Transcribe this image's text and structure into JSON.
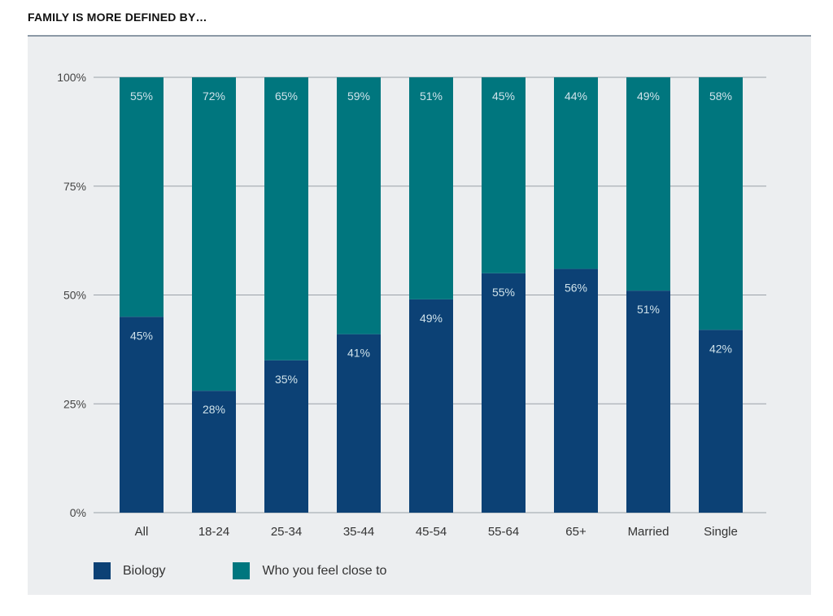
{
  "header": {
    "title": "FAMILY IS MORE DEFINED BY…"
  },
  "colors": {
    "biology": "#0c4175",
    "close": "#00767e",
    "grid": "#9aa1a8",
    "panel_bg": "#eceef0",
    "label_text": "#cfe2ea"
  },
  "legend": {
    "items": [
      {
        "label": "Biology",
        "color": "#0c4175"
      },
      {
        "label": "Who you feel close to",
        "color": "#00767e"
      }
    ]
  },
  "chart_data": {
    "type": "bar",
    "stacked": true,
    "title": "FAMILY IS MORE DEFINED BY…",
    "categories": [
      "All",
      "18-24",
      "25-34",
      "35-44",
      "45-54",
      "55-64",
      "65+",
      "Married",
      "Single"
    ],
    "series": [
      {
        "name": "Biology",
        "values": [
          45,
          28,
          35,
          41,
          49,
          55,
          56,
          51,
          42
        ],
        "labels": [
          "45%",
          "28%",
          "35%",
          "41%",
          "49%",
          "55%",
          "56%",
          "51%",
          "42%"
        ]
      },
      {
        "name": "Who you feel close to",
        "values": [
          55,
          72,
          65,
          59,
          51,
          45,
          44,
          49,
          58
        ],
        "labels": [
          "55%",
          "72%",
          "65%",
          "59%",
          "51%",
          "45%",
          "44%",
          "49%",
          "58%"
        ]
      }
    ],
    "yticks": [
      0,
      25,
      50,
      75,
      100
    ],
    "ytick_labels": [
      "0%",
      "25%",
      "50%",
      "75%",
      "100%"
    ],
    "ylim": [
      0,
      100
    ],
    "grid": true,
    "legend_position": "bottom-left"
  }
}
